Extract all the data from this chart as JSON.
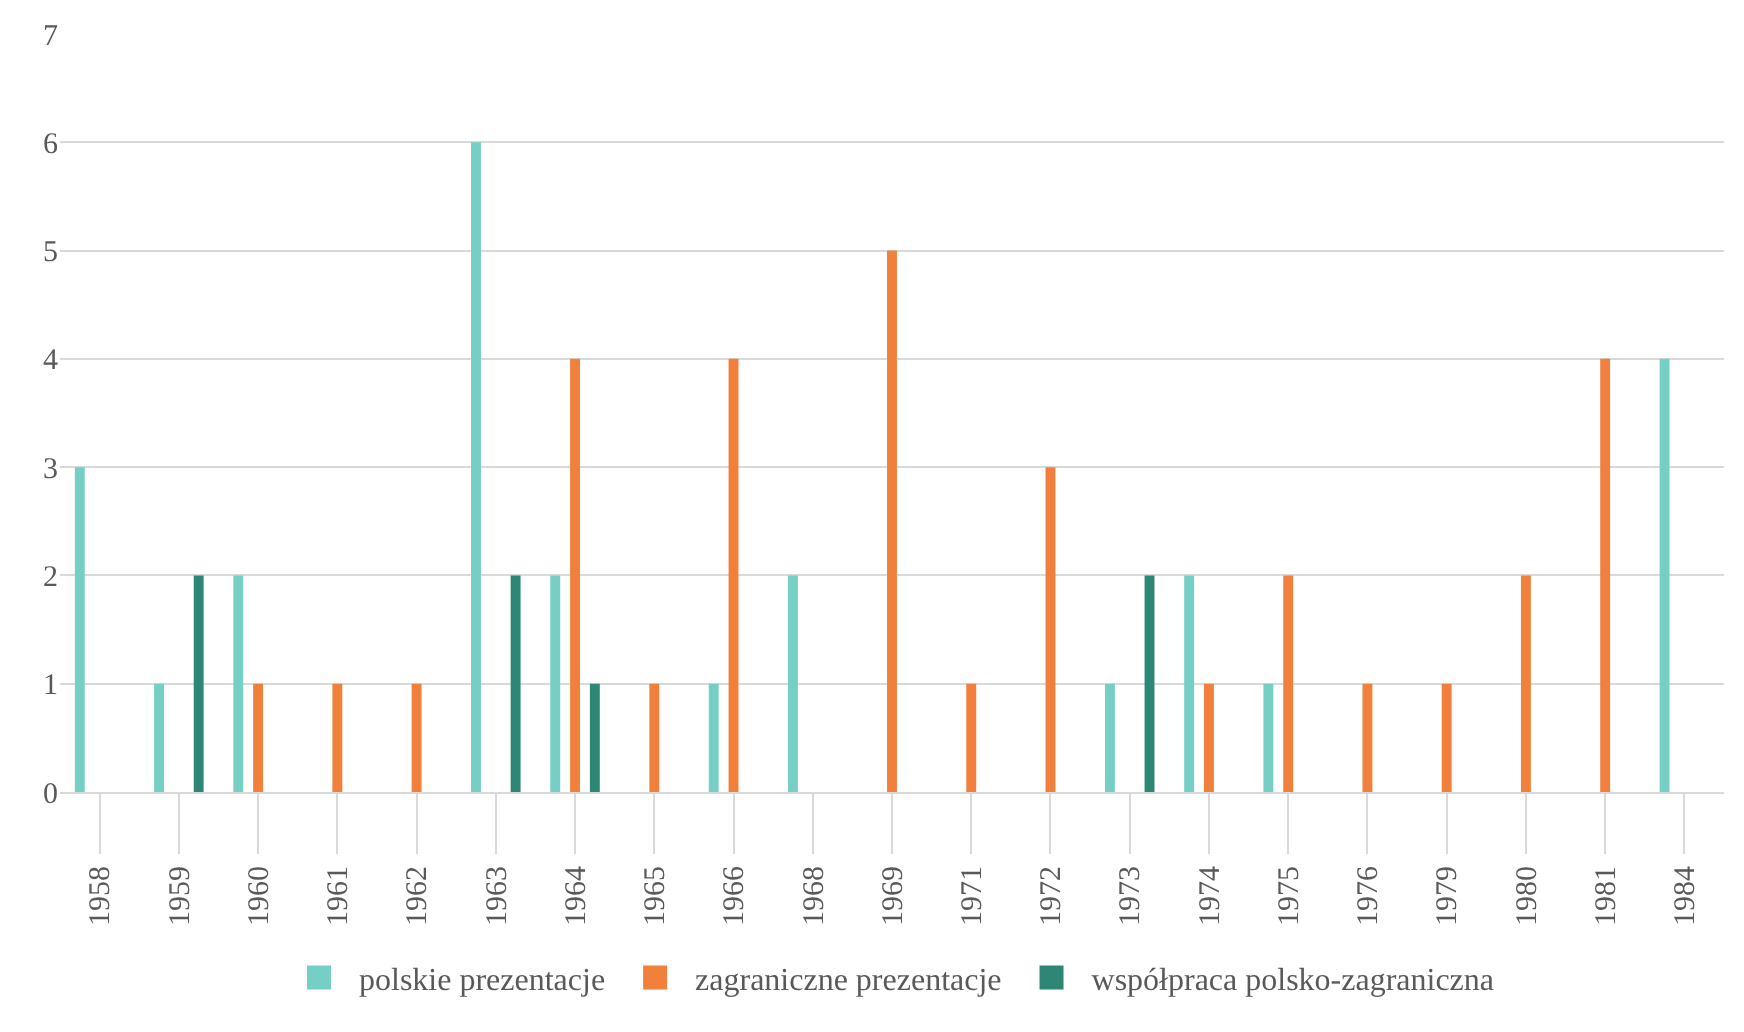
{
  "chart_data": {
    "type": "bar",
    "categories": [
      "1958",
      "1959",
      "1960",
      "1961",
      "1962",
      "1963",
      "1964",
      "1965",
      "1966",
      "1968",
      "1969",
      "1971",
      "1972",
      "1973",
      "1974",
      "1975",
      "1976",
      "1979",
      "1980",
      "1981",
      "1984"
    ],
    "series": [
      {
        "name": "polskie prezentacje",
        "color": "#76cfc4",
        "values": [
          3,
          1,
          2,
          0,
          0,
          6,
          2,
          0,
          1,
          2,
          0,
          0,
          0,
          1,
          2,
          1,
          0,
          0,
          0,
          0,
          4
        ]
      },
      {
        "name": "zagraniczne prezentacje",
        "color": "#f0803c",
        "values": [
          0,
          0,
          1,
          1,
          1,
          0,
          4,
          1,
          4,
          0,
          5,
          1,
          3,
          0,
          1,
          2,
          1,
          1,
          2,
          4,
          0
        ]
      },
      {
        "name": "współpraca polsko-zagraniczna",
        "color": "#2e8674",
        "values": [
          0,
          2,
          0,
          0,
          0,
          2,
          1,
          0,
          0,
          0,
          0,
          0,
          0,
          2,
          0,
          0,
          0,
          0,
          0,
          0,
          0
        ]
      }
    ],
    "ylim": [
      0,
      7
    ],
    "yticks": [
      0,
      1,
      2,
      3,
      4,
      5,
      6,
      7
    ],
    "grid": "y",
    "legend": "bottom"
  }
}
